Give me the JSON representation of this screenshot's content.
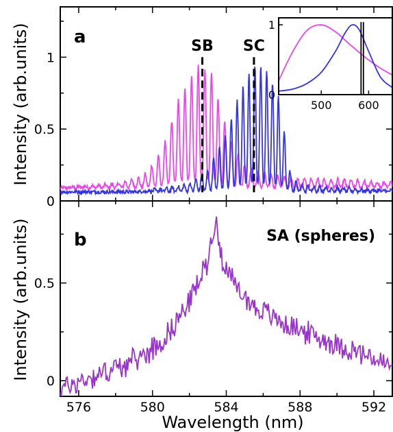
{
  "chart_data": [
    {
      "type": "line",
      "panel_label": "a",
      "xlim": [
        575,
        593
      ],
      "ylim": [
        0,
        1.35
      ],
      "yticks": [
        0,
        0.5,
        1
      ],
      "ytick_labels": [
        "0",
        "0.5",
        "1"
      ],
      "ylabel": "Intensity (arb.units)",
      "annotations": [
        {
          "text": "SB",
          "x": 582.7
        },
        {
          "text": "SC",
          "x": 585.5
        }
      ],
      "series": [
        {
          "color": "#ee44ee",
          "noise_floor": 0.1,
          "envelope": [
            [
              575,
              0.1
            ],
            [
              578,
              0.13
            ],
            [
              579.5,
              0.18
            ],
            [
              580.5,
              0.35
            ],
            [
              581.5,
              0.75
            ],
            [
              582.5,
              0.95
            ],
            [
              583.2,
              0.9
            ],
            [
              583.8,
              0.6
            ],
            [
              584.4,
              0.38
            ],
            [
              585.0,
              0.27
            ],
            [
              585.6,
              0.22
            ],
            [
              586.5,
              0.19
            ],
            [
              588,
              0.17
            ],
            [
              590,
              0.16
            ],
            [
              593,
              0.14
            ]
          ],
          "modulation_period_nm": 0.36
        },
        {
          "color": "#3333ee",
          "noise_floor": 0.07,
          "envelope": [
            [
              575,
              0.06
            ],
            [
              579,
              0.07
            ],
            [
              581,
              0.1
            ],
            [
              582,
              0.13
            ],
            [
              583,
              0.22
            ],
            [
              584,
              0.48
            ],
            [
              584.8,
              0.78
            ],
            [
              585.5,
              0.95
            ],
            [
              586.2,
              0.92
            ],
            [
              586.8,
              0.75
            ],
            [
              587.2,
              0.45
            ],
            [
              587.5,
              0.18
            ],
            [
              588,
              0.12
            ],
            [
              590,
              0.1
            ],
            [
              593,
              0.08
            ]
          ],
          "modulation_period_nm": 0.32
        }
      ],
      "inset": {
        "type": "line",
        "xlim": [
          410,
          650
        ],
        "ylim": [
          0,
          1.1
        ],
        "xticks": [
          500,
          600
        ],
        "xtick_labels": [
          "500",
          "600"
        ],
        "yticks": [
          0,
          1
        ],
        "ytick_labels": [
          "0",
          "1"
        ],
        "series": [
          {
            "color": "#ee44ee",
            "peak_x": 500,
            "x": [
              410,
              440,
              470,
              500,
              530,
              560,
              590,
              620,
              650
            ],
            "y": [
              0.2,
              0.62,
              0.92,
              1.0,
              0.9,
              0.72,
              0.55,
              0.4,
              0.28
            ]
          },
          {
            "color": "#3333ee",
            "peak_x": 565,
            "x": [
              410,
              440,
              470,
              500,
              530,
              550,
              565,
              580,
              600,
              625,
              650
            ],
            "y": [
              0.05,
              0.08,
              0.16,
              0.32,
              0.62,
              0.88,
              1.0,
              0.93,
              0.62,
              0.25,
              0.1
            ]
          }
        ],
        "vertical_lines_x": [
          584,
          589
        ]
      }
    },
    {
      "type": "line",
      "panel_label": "b",
      "annotation": "SA (spheres)",
      "xlim": [
        575,
        593
      ],
      "ylim": [
        -0.08,
        0.92
      ],
      "xticks": [
        576,
        580,
        584,
        588,
        592
      ],
      "xtick_labels": [
        "576",
        "580",
        "584",
        "588",
        "592"
      ],
      "yticks": [
        0,
        0.5
      ],
      "ytick_labels": [
        "0",
        "0.5"
      ],
      "xlabel": "Wavelength (nm)",
      "ylabel": "Intensity (arb.units)",
      "series": [
        {
          "color": "#9933cc",
          "envelope": [
            [
              575,
              -0.04
            ],
            [
              577,
              0.03
            ],
            [
              579,
              0.1
            ],
            [
              580.5,
              0.2
            ],
            [
              581.5,
              0.33
            ],
            [
              582.5,
              0.5
            ],
            [
              583.0,
              0.62
            ],
            [
              583.4,
              0.82
            ],
            [
              583.8,
              0.62
            ],
            [
              584.5,
              0.48
            ],
            [
              585.5,
              0.38
            ],
            [
              587,
              0.3
            ],
            [
              589,
              0.22
            ],
            [
              591,
              0.15
            ],
            [
              593,
              0.07
            ]
          ],
          "noise_amplitude": 0.05
        }
      ]
    }
  ]
}
